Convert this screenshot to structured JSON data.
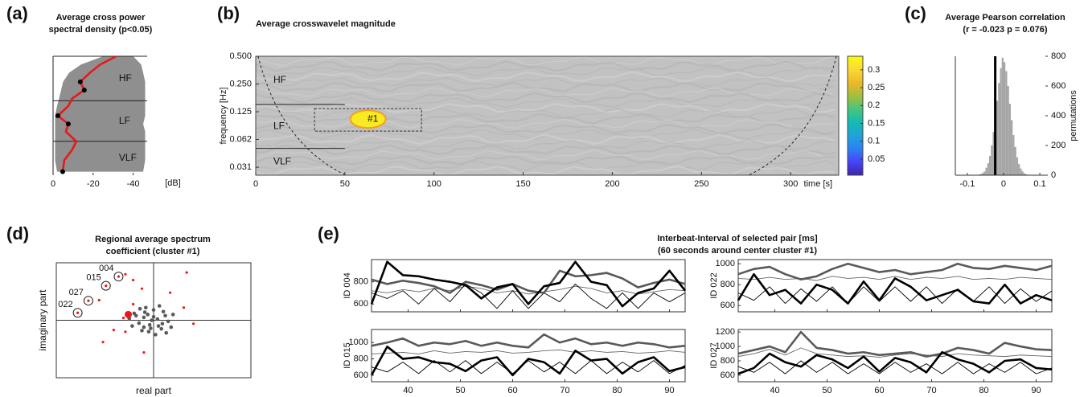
{
  "chart_data": [
    {
      "type": "line",
      "panel": "(a)",
      "title": [
        "Average cross power",
        "spectral density (p<0.05)"
      ],
      "orientation": "horizontal",
      "xlabel": "[dB]",
      "xlim": [
        0,
        -47
      ],
      "xticks": [
        0,
        -20,
        -40
      ],
      "yscale": "log",
      "ylim": [
        0.02,
        0.5
      ],
      "x": [
        0.5,
        0.4,
        0.32,
        0.25,
        0.2,
        0.16,
        0.13,
        0.1,
        0.08,
        0.065,
        0.05,
        0.04,
        0.03,
        0.022
      ],
      "band": {
        "color": "#8f8f8f",
        "near": [
          -25,
          -14,
          -8,
          -5,
          -4,
          -3,
          -2,
          -1,
          -1,
          -1,
          -1,
          -1,
          -1,
          -2
        ],
        "far": [
          -40,
          -44,
          -45,
          -46,
          -46,
          -46,
          -46,
          -46,
          -45,
          -46,
          -46,
          -46,
          -46,
          -45
        ]
      },
      "series": [
        {
          "color": "#e41a1c",
          "style": "thick",
          "values": [
            -31.6,
            -23.6,
            -18.4,
            -13.6,
            -15.6,
            -9.6,
            -7.6,
            -2.4,
            -7.6,
            -6.4,
            -11.6,
            -9.6,
            -5.6,
            -4.8
          ]
        },
        {
          "color": "#000000",
          "style": "marker",
          "x": [
            0.25,
            0.2,
            0.1,
            0.08,
            0.022
          ],
          "values": [
            -13.6,
            -15.6,
            -2.4,
            -7.6,
            -4.8
          ]
        }
      ],
      "band_edges": [
        0.15,
        0.05
      ],
      "bands": [
        "HF",
        "LF",
        "VLF"
      ]
    },
    {
      "type": "heatmap",
      "panel": "(b)",
      "title": [
        "Average crosswavelet magnitude"
      ],
      "xlabel": "time [s]",
      "ylabel": "frequency [Hz]",
      "xlim": [
        0,
        327
      ],
      "xticks": [
        0,
        50,
        100,
        150,
        200,
        250,
        300
      ],
      "yscale": "log",
      "ylim": [
        0.0256,
        0.5
      ],
      "yticks": [
        {
          "value": 0.5,
          "label": "0.500"
        },
        {
          "value": 0.25,
          "label": "0.250"
        },
        {
          "value": 0.125,
          "label": "0.125"
        },
        {
          "value": 0.0625,
          "label": "0.062"
        },
        {
          "value": 0.03125,
          "label": "0.031"
        }
      ],
      "band_edges": [
        0.15,
        0.05
      ],
      "bands": [
        "HF",
        "LF",
        "VLF"
      ],
      "cluster": {
        "label": "#1",
        "time": 63,
        "frequency": 0.104,
        "value": 0.32,
        "box_time": [
          33,
          93
        ],
        "box_frequency": [
          0.077,
          0.135
        ]
      },
      "clim": [
        0.005,
        0.338
      ],
      "cticks": [
        0.05,
        0.1,
        0.15,
        0.2,
        0.25,
        0.3
      ],
      "colormap": [
        "#3e26a8",
        "#4743f9",
        "#2c81f1",
        "#1fa3d9",
        "#13bbb3",
        "#48c47e",
        "#a4be3b",
        "#ecb928",
        "#fcd836",
        "#f9fb0e"
      ]
    },
    {
      "type": "histogram",
      "panel": "(c)",
      "title": [
        "Average Pearson correlation",
        "(r = -0.023   p = 0.076)"
      ],
      "ylabel": "permutations",
      "yaxis_side": "right",
      "color": "#a6a6a6",
      "observed_r": -0.023,
      "line_color": "#000000",
      "bins": [
        -0.075,
        -0.07,
        -0.065,
        -0.06,
        -0.055,
        -0.05,
        -0.045,
        -0.04,
        -0.035,
        -0.03,
        -0.025,
        -0.02,
        -0.015,
        -0.01,
        -0.005,
        0,
        0.005,
        0.01,
        0.015,
        0.02,
        0.025,
        0.03,
        0.035,
        0.04,
        0.045,
        0.05,
        0.055,
        0.06,
        0.065,
        0.07,
        0.075
      ],
      "values": [
        2,
        4,
        8,
        15,
        25,
        50,
        80,
        130,
        200,
        290,
        390,
        500,
        620,
        720,
        790,
        760,
        700,
        600,
        480,
        370,
        270,
        190,
        120,
        75,
        45,
        25,
        12,
        6,
        3,
        1
      ],
      "xlim": [
        -0.133,
        0.122
      ],
      "xticks": [
        -0.1,
        0,
        0.1
      ],
      "ylim": [
        0,
        800
      ],
      "yticks": [
        0,
        200,
        400,
        600,
        800
      ]
    },
    {
      "type": "scatter",
      "panel": "(d)",
      "title": [
        "Regional average spectrum",
        "coefficient (cluster #1)"
      ],
      "xlabel": "real part",
      "ylabel": "imaginary part",
      "xlim": [
        -1,
        1
      ],
      "ylim": [
        -1,
        1
      ],
      "series": [
        {
          "color": "#5a5a5a",
          "x": [
            -0.1,
            0.05,
            -0.2,
            0.12,
            -0.05,
            0.0,
            -0.15,
            0.08,
            -0.02,
            0.15,
            -0.25,
            -0.08,
            0.1,
            -0.12,
            0.02,
            -0.18,
            0.2,
            -0.04,
            0.06,
            -0.1,
            0.0,
            -0.22,
            0.13,
            -0.06,
            0.04,
            -0.14,
            0.09,
            -0.03,
            0.18,
            -0.09
          ],
          "values": [
            0.05,
            -0.1,
            0.12,
            0.08,
            -0.2,
            0.18,
            -0.05,
            -0.15,
            0.0,
            -0.02,
            0.03,
            0.22,
            0.15,
            -0.18,
            -0.25,
            0.08,
            0.1,
            -0.08,
            0.25,
            -0.12,
            0.06,
            -0.1,
            -0.22,
            0.1,
            0.02,
            0.2,
            -0.06,
            -0.14,
            -0.12,
            0.14
          ]
        },
        {
          "color": "#e8171b",
          "x": [
            -0.36,
            -0.49,
            -0.67,
            -0.78,
            -0.29,
            -0.21,
            -0.12,
            0.34,
            0.17,
            -0.56,
            -0.41,
            -0.29,
            -0.52,
            -0.1,
            0.41,
            0.31,
            -0.21,
            -0.31
          ],
          "values": [
            0.76,
            0.6,
            0.34,
            0.13,
            0.8,
            0.7,
            0.55,
            0.83,
            0.48,
            0.35,
            -0.17,
            -0.2,
            -0.38,
            -0.56,
            -0.06,
            0.22,
            0.28,
            0.04
          ],
          "labels": [
            "004",
            "015",
            "027",
            "022",
            null,
            null,
            null,
            null,
            null,
            null,
            null,
            null,
            null,
            null,
            null,
            null,
            null,
            null
          ]
        },
        {
          "color": "#e8171b",
          "x": [
            -0.26
          ],
          "values": [
            0.1
          ]
        }
      ]
    },
    {
      "type": "line",
      "panel": "(e)",
      "title": [
        "Interbeat-Interval of selected pair [ms]",
        "(60 seconds around center cluster #1)"
      ],
      "x": [
        33,
        36,
        39,
        42,
        45,
        48,
        51,
        54,
        57,
        60,
        63,
        66,
        69,
        72,
        75,
        78,
        81,
        84,
        87,
        90,
        93
      ],
      "xlim": [
        33,
        93
      ],
      "xticks": [
        40,
        50,
        60,
        70,
        80,
        90
      ],
      "subplots": [
        {
          "ylabel": "ID 004",
          "ylim": [
            530,
            1000
          ],
          "yticks": [
            600,
            800
          ],
          "series": [
            {
              "color": "#666666",
              "style": "thin",
              "values": [
                720,
                700,
                730,
                710,
                740,
                720,
                760,
                740,
                700,
                720,
                690,
                710,
                730,
                760,
                740,
                700,
                720,
                690,
                710,
                730,
                720
              ]
            },
            {
              "color": "#000000",
              "style": "thin",
              "values": [
                700,
                650,
                720,
                600,
                740,
                620,
                780,
                700,
                560,
                720,
                560,
                700,
                620,
                780,
                650,
                560,
                700,
                560,
                700,
                620,
                700
              ]
            },
            {
              "color": "#595959",
              "style": "thick",
              "values": [
                820,
                780,
                810,
                790,
                760,
                700,
                800,
                770,
                730,
                780,
                720,
                700,
                900,
                850,
                860,
                880,
                830,
                750,
                790,
                820,
                780
              ]
            },
            {
              "color": "#000000",
              "style": "thick",
              "values": [
                600,
                980,
                860,
                850,
                820,
                800,
                770,
                650,
                750,
                780,
                600,
                760,
                790,
                980,
                800,
                770,
                580,
                700,
                740,
                900,
                720
              ]
            }
          ]
        },
        {
          "ylabel": "ID 022",
          "ylim": [
            540,
            1040
          ],
          "yticks": [
            600,
            800,
            1000
          ],
          "series": [
            {
              "color": "#666666",
              "style": "thin",
              "values": [
                860,
                850,
                870,
                850,
                860,
                840,
                880,
                860,
                870,
                850,
                880,
                850,
                870,
                860,
                880,
                850,
                860,
                850,
                870,
                860,
                850
              ]
            },
            {
              "color": "#000000",
              "style": "thin",
              "values": [
                720,
                650,
                780,
                620,
                760,
                640,
                780,
                620,
                780,
                640,
                780,
                640,
                780,
                620,
                760,
                640,
                780,
                620,
                760,
                640,
                740
              ]
            },
            {
              "color": "#595959",
              "style": "thick",
              "values": [
                900,
                950,
                970,
                900,
                850,
                880,
                950,
                1000,
                960,
                920,
                940,
                900,
                920,
                940,
                1000,
                960,
                950,
                980,
                960,
                940,
                980
              ]
            },
            {
              "color": "#000000",
              "style": "thick",
              "values": [
                650,
                900,
                700,
                750,
                620,
                800,
                750,
                620,
                830,
                650,
                860,
                780,
                650,
                700,
                750,
                640,
                620,
                800,
                620,
                700,
                650
              ]
            }
          ]
        },
        {
          "ylabel": "ID 015",
          "ylim": [
            520,
            1160
          ],
          "yticks": [
            600,
            800,
            1000
          ],
          "series": [
            {
              "color": "#666666",
              "style": "thin",
              "values": [
                860,
                870,
                880,
                860,
                900,
                870,
                890,
                880,
                900,
                870,
                880,
                900,
                910,
                880,
                900,
                880,
                890,
                870,
                880,
                900,
                880
              ]
            },
            {
              "color": "#000000",
              "style": "thin",
              "values": [
                700,
                640,
                760,
                620,
                780,
                640,
                780,
                620,
                760,
                620,
                780,
                640,
                760,
                620,
                780,
                620,
                760,
                640,
                780,
                620,
                720
              ]
            },
            {
              "color": "#595959",
              "style": "thick",
              "values": [
                960,
                1000,
                1050,
                960,
                1000,
                980,
                1020,
                960,
                1000,
                960,
                940,
                1100,
                1000,
                1050,
                980,
                1000,
                960,
                1000,
                980,
                940,
                960
              ]
            },
            {
              "color": "#000000",
              "style": "thick",
              "values": [
                600,
                950,
                800,
                820,
                760,
                740,
                650,
                780,
                820,
                600,
                800,
                760,
                620,
                900,
                780,
                800,
                620,
                760,
                820,
                650,
                700
              ]
            }
          ]
        },
        {
          "ylabel": "ID 027",
          "ylim": [
            510,
            1235
          ],
          "yticks": [
            600,
            800,
            1000,
            1200
          ],
          "series": [
            {
              "color": "#666666",
              "style": "thin",
              "values": [
                860,
                900,
                960,
                880,
                980,
                900,
                880,
                860,
                870,
                850,
                880,
                900,
                880,
                860,
                900,
                880,
                870,
                860,
                880,
                870,
                860
              ]
            },
            {
              "color": "#000000",
              "style": "thin",
              "values": [
                720,
                640,
                780,
                620,
                800,
                640,
                780,
                620,
                760,
                620,
                780,
                640,
                760,
                620,
                780,
                620,
                760,
                640,
                780,
                620,
                700
              ]
            },
            {
              "color": "#595959",
              "style": "thick",
              "values": [
                900,
                950,
                1000,
                920,
                1200,
                980,
                950,
                900,
                920,
                880,
                900,
                920,
                860,
                900,
                980,
                950,
                900,
                1050,
                1000,
                960,
                950
              ]
            },
            {
              "color": "#000000",
              "style": "thick",
              "values": [
                620,
                700,
                900,
                780,
                720,
                880,
                820,
                700,
                860,
                650,
                840,
                780,
                640,
                920,
                820,
                760,
                640,
                800,
                820,
                700,
                680
              ]
            }
          ]
        }
      ]
    }
  ]
}
